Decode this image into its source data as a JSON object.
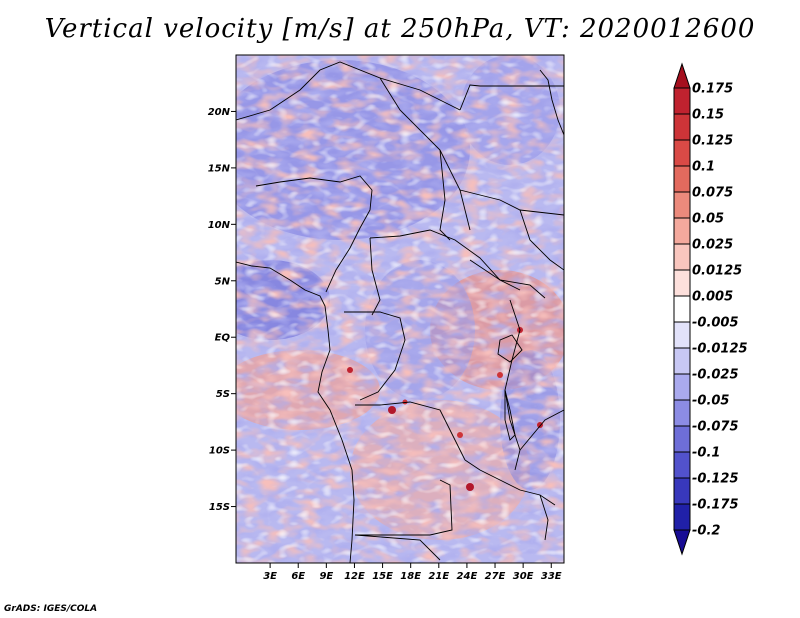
{
  "title": "Vertical velocity [m/s] at 250hPa, VT: 2020012600",
  "credit": "GrADS: IGES/COLA",
  "map": {
    "variable": "Vertical velocity",
    "units": "m/s",
    "level": "250hPa",
    "valid_time": "2020012600",
    "lat_range": [
      -20,
      25
    ],
    "lon_range": [
      0,
      35
    ],
    "lat_ticks": [
      {
        "value": 20,
        "label": "20N"
      },
      {
        "value": 15,
        "label": "15N"
      },
      {
        "value": 10,
        "label": "10N"
      },
      {
        "value": 5,
        "label": "5N"
      },
      {
        "value": 0,
        "label": "EQ"
      },
      {
        "value": -5,
        "label": "5S"
      },
      {
        "value": -10,
        "label": "10S"
      },
      {
        "value": -15,
        "label": "15S"
      }
    ],
    "lon_ticks": [
      {
        "value": 3,
        "label": "3E"
      },
      {
        "value": 6,
        "label": "6E"
      },
      {
        "value": 9,
        "label": "9E"
      },
      {
        "value": 12,
        "label": "12E"
      },
      {
        "value": 15,
        "label": "15E"
      },
      {
        "value": 18,
        "label": "18E"
      },
      {
        "value": 21,
        "label": "21E"
      },
      {
        "value": 24,
        "label": "24E"
      },
      {
        "value": 27,
        "label": "27E"
      },
      {
        "value": 30,
        "label": "30E"
      },
      {
        "value": 33,
        "label": "33E"
      }
    ]
  },
  "colorbar": {
    "levels": [
      {
        "label": "0.175",
        "color": "#b2182b"
      },
      {
        "label": "0.15",
        "color": "#c0222f"
      },
      {
        "label": "0.125",
        "color": "#cd3438"
      },
      {
        "label": "0.1",
        "color": "#d94a46"
      },
      {
        "label": "0.075",
        "color": "#e36a5e"
      },
      {
        "label": "0.05",
        "color": "#ec8a7c"
      },
      {
        "label": "0.025",
        "color": "#f4a99d"
      },
      {
        "label": "0.0125",
        "color": "#f9c6be"
      },
      {
        "label": "0.005",
        "color": "#fde0dc"
      },
      {
        "label": "-0.005",
        "color": "#ffffff"
      },
      {
        "label": "-0.0125",
        "color": "#e2e2fa"
      },
      {
        "label": "-0.025",
        "color": "#c8c8f4"
      },
      {
        "label": "-0.05",
        "color": "#aaaaee"
      },
      {
        "label": "-0.075",
        "color": "#8c8ce4"
      },
      {
        "label": "-0.1",
        "color": "#6e6ed8"
      },
      {
        "label": "-0.125",
        "color": "#5252cc"
      },
      {
        "label": "-0.175",
        "color": "#3838bc"
      },
      {
        "label": "-0.2",
        "color": "#2020a8"
      }
    ],
    "top_color": "#a50f1e",
    "bottom_color": "#180c94"
  },
  "colors": {
    "positive": "#e8867a",
    "negative": "#8080e0",
    "border": "#000000"
  }
}
